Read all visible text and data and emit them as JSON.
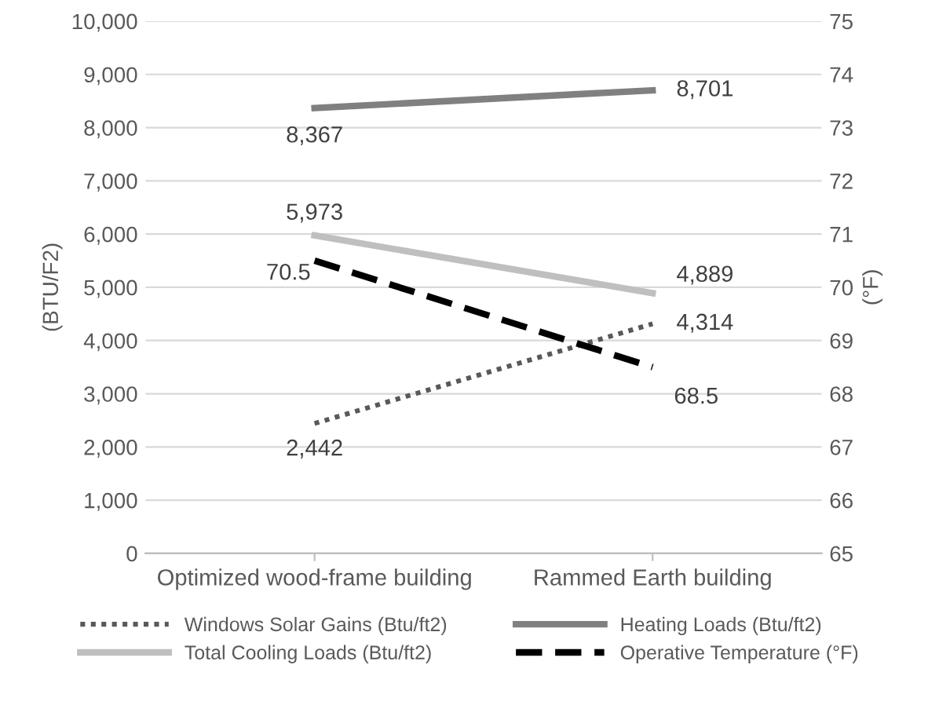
{
  "chart_data": {
    "type": "line",
    "categories": [
      "Optimized wood-frame building",
      "Rammed Earth building"
    ],
    "ylabel": "(BTU/F2)",
    "y2label": "(°F)",
    "ylim": [
      0,
      10000
    ],
    "yticks": [
      {
        "value": 0,
        "label": "0"
      },
      {
        "value": 1000,
        "label": "1,000"
      },
      {
        "value": 2000,
        "label": "2,000"
      },
      {
        "value": 3000,
        "label": "3,000"
      },
      {
        "value": 4000,
        "label": "4,000"
      },
      {
        "value": 5000,
        "label": "5,000"
      },
      {
        "value": 6000,
        "label": "6,000"
      },
      {
        "value": 7000,
        "label": "7,000"
      },
      {
        "value": 8000,
        "label": "8,000"
      },
      {
        "value": 9000,
        "label": "9,000"
      },
      {
        "value": 10000,
        "label": "10,000"
      }
    ],
    "y2lim": [
      65,
      75
    ],
    "y2ticks": [
      65,
      66,
      67,
      68,
      69,
      70,
      71,
      72,
      73,
      74,
      75
    ],
    "grid": "y",
    "legend": "bottom",
    "marker": "none",
    "series": [
      {
        "name": "Windows Solar Gains (Btu/ft2)",
        "color": "#595959",
        "values": [
          2442,
          4314
        ],
        "line_style": "dotted",
        "value_labels": [
          "2,442",
          "4,314"
        ]
      },
      {
        "name": "Total Cooling Loads (Btu/ft2)",
        "color": "#bfbfbf",
        "values": [
          5973,
          4889
        ],
        "line_style": "solid",
        "value_labels": [
          "5,973",
          "4,889"
        ]
      },
      {
        "name": "Heating Loads (Btu/ft2)",
        "color": "#808080",
        "values": [
          8367,
          8701
        ],
        "line_style": "solid",
        "value_labels": [
          "8,367",
          "8,701"
        ]
      },
      {
        "name": "Operative Temperature (°F)",
        "color": "#000000",
        "values": [
          70.5,
          68.5
        ],
        "line_style": "dashed",
        "axis": "y2",
        "value_labels": [
          "70.5",
          "68.5"
        ]
      }
    ]
  }
}
